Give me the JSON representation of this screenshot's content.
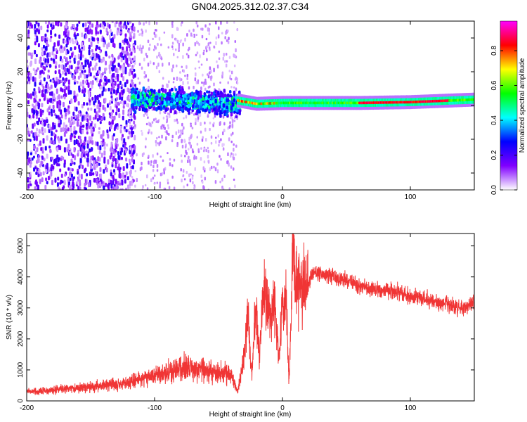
{
  "page": {
    "title": "GN04.2025.312.02.37.C34"
  },
  "chart_data": [
    {
      "type": "heatmap",
      "xlabel": "Height of straight line (km)",
      "ylabel": "Frequency (Hz)",
      "xlim": [
        -200,
        150
      ],
      "ylim": [
        -50,
        50
      ],
      "x_ticks": [
        -200,
        -100,
        0,
        100
      ],
      "x_tick_labels": [
        "-200",
        "-100",
        "0",
        "100"
      ],
      "y_ticks": [
        -40,
        -20,
        0,
        20,
        40
      ],
      "y_tick_labels": [
        "-40",
        "-20",
        "0",
        "20",
        "40"
      ],
      "colorbar": {
        "label": "Normalized spectral amplitude",
        "range": [
          0,
          0.97
        ],
        "ticks": [
          0.0,
          0.2,
          0.4,
          0.6,
          0.8
        ],
        "tick_labels": [
          "0.0",
          "0.2",
          "0.4",
          "0.6",
          "0.8"
        ],
        "colors": [
          "#ffffff",
          "#8000ff",
          "#0000ff",
          "#00ffff",
          "#00ff00",
          "#ffff00",
          "#ff0000",
          "#ff00ff"
        ]
      },
      "regions": [
        {
          "x": [
            -200,
            -115
          ],
          "freq_range": [
            -50,
            50
          ],
          "amplitude": "0.1-0.25 (noise)"
        },
        {
          "x": [
            -115,
            -35
          ],
          "freq_range": [
            -10,
            15
          ],
          "amplitude": "0.2-0.5"
        },
        {
          "x": [
            -35,
            150
          ],
          "freq_range": [
            0,
            5
          ],
          "amplitude": "0.6-0.9"
        }
      ],
      "band_center_hz": [
        {
          "x": -35,
          "y": 3
        },
        {
          "x": -20,
          "y": 1
        },
        {
          "x": 0,
          "y": 1.5
        },
        {
          "x": 60,
          "y": 1.5
        },
        {
          "x": 100,
          "y": 2
        },
        {
          "x": 150,
          "y": 3.5
        }
      ]
    },
    {
      "type": "line",
      "xlabel": "Height of straight line (km)",
      "ylabel": "SNR (10 * v/v)",
      "xlim": [
        -200,
        150
      ],
      "ylim": [
        0,
        5400
      ],
      "x_ticks": [
        -200,
        -100,
        0,
        100
      ],
      "x_tick_labels": [
        "-200",
        "-100",
        "0",
        "100"
      ],
      "y_ticks": [
        0,
        1000,
        2000,
        3000,
        4000,
        5000
      ],
      "y_tick_labels": [
        "0",
        "1000",
        "2000",
        "3000",
        "4000",
        "5000"
      ],
      "series": [
        {
          "name": "SNR",
          "color": "#f03535",
          "x": [
            -200,
            -180,
            -160,
            -140,
            -120,
            -100,
            -90,
            -80,
            -70,
            -60,
            -50,
            -40,
            -35,
            -30,
            -27,
            -24,
            -21,
            -18,
            -15,
            -12,
            -9,
            -6,
            -3,
            0,
            3,
            5,
            7,
            8,
            10,
            15,
            20,
            25,
            30,
            40,
            50,
            60,
            70,
            80,
            90,
            100,
            110,
            120,
            130,
            140,
            150
          ],
          "values": [
            300,
            350,
            420,
            500,
            600,
            800,
            900,
            1100,
            1050,
            1000,
            900,
            800,
            300,
            1500,
            2800,
            800,
            3000,
            1500,
            3500,
            3200,
            2700,
            3300,
            1200,
            3000,
            3300,
            600,
            2900,
            5400,
            3700,
            3900,
            3800,
            4200,
            4100,
            4000,
            3900,
            3700,
            3600,
            3600,
            3500,
            3400,
            3300,
            3200,
            3100,
            3000,
            3200
          ]
        }
      ]
    }
  ]
}
